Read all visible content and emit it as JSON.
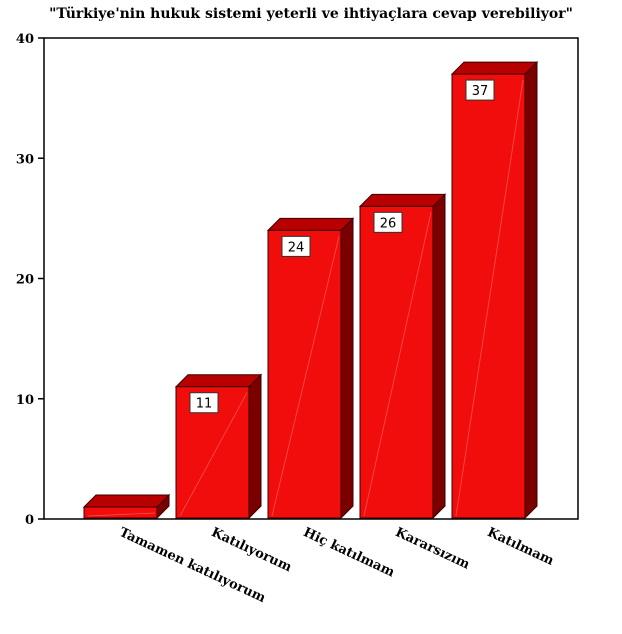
{
  "chart_data": {
    "type": "bar",
    "title": "\"Türkiye'nin hukuk sistemi yeterli ve ihtiyaçlara cevap  verebiliyor\"",
    "xlabel": "",
    "ylabel": "",
    "categories": [
      "Tamamen katılıyorum",
      "Katılıyorum",
      "Hiç katılmam",
      "Kararsızım",
      "Katılmam"
    ],
    "values": [
      1,
      11,
      24,
      26,
      37
    ],
    "data_labels": [
      "",
      "11",
      "24",
      "26",
      "37"
    ],
    "ylim": [
      0,
      40
    ],
    "yticks": [
      0,
      10,
      20,
      30,
      40
    ],
    "grid": false,
    "bar_style": "3d",
    "colors": {
      "bar_front": "#f20d0d",
      "bar_top": "#b80000",
      "bar_side": "#7a0000",
      "bar_outline": "#3a0000"
    }
  }
}
